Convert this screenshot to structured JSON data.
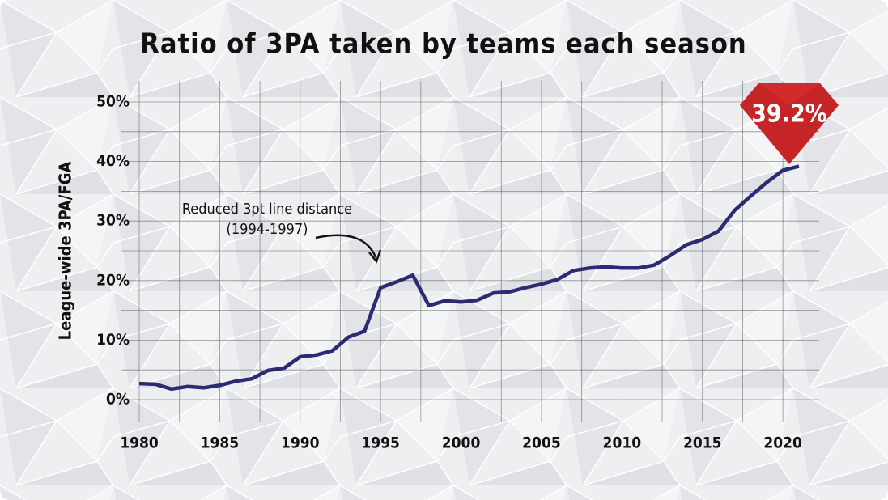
{
  "chart_data": {
    "type": "line",
    "title": "Ratio of 3PA taken by teams each season",
    "y_label": "League-wide 3PA/FGA",
    "annotation": [
      "Reduced 3pt line distance",
      "(1994-1997)"
    ],
    "x": [
      1980,
      1981,
      1982,
      1983,
      1984,
      1985,
      1986,
      1987,
      1988,
      1989,
      1990,
      1991,
      1992,
      1993,
      1994,
      1995,
      1996,
      1997,
      1998,
      1999,
      2000,
      2001,
      2002,
      2003,
      2004,
      2005,
      2006,
      2007,
      2008,
      2009,
      2010,
      2011,
      2012,
      2013,
      2014,
      2015,
      2016,
      2017,
      2018,
      2019,
      2020,
      2021
    ],
    "series": [
      {
        "color": "#2b2a72",
        "values": [
          2.7,
          2.6,
          1.8,
          2.2,
          2.0,
          2.4,
          3.1,
          3.5,
          4.9,
          5.3,
          7.2,
          7.5,
          8.2,
          10.5,
          11.5,
          18.8,
          19.8,
          20.9,
          15.8,
          16.6,
          16.4,
          16.7,
          17.9,
          18.1,
          18.8,
          19.4,
          20.2,
          21.7,
          22.1,
          22.3,
          22.1,
          22.1,
          22.6,
          24.2,
          26.0,
          26.9,
          28.3,
          31.8,
          34.2,
          36.5,
          38.5,
          39.2
        ],
        "value_labels": [
          null,
          null,
          null,
          null,
          null,
          null,
          null,
          null,
          null,
          null,
          null,
          null,
          null,
          null,
          null,
          null,
          null,
          null,
          null,
          null,
          null,
          null,
          null,
          null,
          null,
          null,
          null,
          null,
          null,
          null,
          null,
          null,
          null,
          null,
          null,
          null,
          null,
          null,
          null,
          null,
          null,
          "39.2%"
        ]
      }
    ],
    "xlim": [
      1980,
      2021
    ],
    "xticks": [
      1980,
      1985,
      1990,
      1995,
      2000,
      2005,
      2010,
      2015,
      2020
    ],
    "ylim": [
      0,
      50
    ],
    "yticks": [
      {
        "value": 0,
        "label": "0%"
      },
      {
        "value": 10,
        "label": "10%"
      },
      {
        "value": 20,
        "label": "20%"
      },
      {
        "value": 30,
        "label": "30%"
      },
      {
        "value": 40,
        "label": "40%"
      },
      {
        "value": 50,
        "label": "50%"
      }
    ],
    "grid": true
  }
}
